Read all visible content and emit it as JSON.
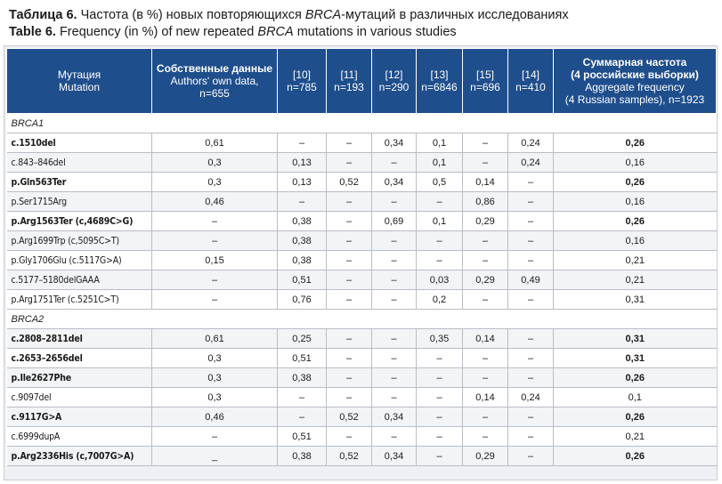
{
  "caption": {
    "ru_label": "Таблица 6.",
    "ru_text_pre": "Частота (в %) новых повторяющихся ",
    "ru_text_italic": "BRCA",
    "ru_text_post": "-мутаций в различных исследованиях",
    "en_label": "Table 6.",
    "en_text_pre": "Frequency (in %) of new repeated ",
    "en_text_italic": "BRCA",
    "en_text_post": " mutations in various studies"
  },
  "colors": {
    "header_bg": "#1f4e8c",
    "header_text": "#ffffff",
    "row_alt_bg": "#f3f4f6",
    "grid_line": "#b8bec5"
  },
  "header": {
    "mutation": {
      "ru": "Мутация",
      "en": "Mutation"
    },
    "own": {
      "ru": "Собственные данные",
      "en": "Authors' own data,",
      "n": "n=655"
    },
    "studies": [
      {
        "ref": "[10]",
        "n": "n=785"
      },
      {
        "ref": "[11]",
        "n": "n=193"
      },
      {
        "ref": "[12]",
        "n": "n=290"
      },
      {
        "ref": "[13]",
        "n": "n=6846"
      },
      {
        "ref": "[15]",
        "n": "n=696"
      },
      {
        "ref": "[14]",
        "n": "n=410"
      }
    ],
    "aggregate": {
      "ru1": "Суммарная частота",
      "ru2": "(4 российские выборки)",
      "en1": "Aggregate frequency",
      "en2": "(4 Russian samples), n=1923"
    }
  },
  "sections": [
    {
      "title": "BRCA1",
      "rows": [
        {
          "mutation": "c.1510del",
          "bold": true,
          "values": [
            "0,61",
            "–",
            "–",
            "0,34",
            "0,1",
            "–",
            "0,24"
          ],
          "aggregate": "0,26"
        },
        {
          "mutation": "c.843–846del",
          "bold": false,
          "values": [
            "0,3",
            "0,13",
            "–",
            "–",
            "0,1",
            "–",
            "0,24"
          ],
          "aggregate": "0,16"
        },
        {
          "mutation": "p.Gln563Ter",
          "bold": true,
          "values": [
            "0,3",
            "0,13",
            "0,52",
            "0,34",
            "0,5",
            "0,14",
            "–"
          ],
          "aggregate": "0,26"
        },
        {
          "mutation": "p.Ser1715Arg",
          "bold": false,
          "values": [
            "0,46",
            "–",
            "–",
            "–",
            "–",
            "0,86",
            "–"
          ],
          "aggregate": "0,16"
        },
        {
          "mutation": "p.Arg1563Ter (c,4689C>G)",
          "bold": true,
          "values": [
            "–",
            "0,38",
            "–",
            "0,69",
            "0,1",
            "0,29",
            "–"
          ],
          "aggregate": "0,26"
        },
        {
          "mutation": "p.Arg1699Trp (c,5095C>T)",
          "bold": false,
          "values": [
            "–",
            "0,38",
            "–",
            "–",
            "–",
            "–",
            "–"
          ],
          "aggregate": "0,16"
        },
        {
          "mutation": "p.Gly1706Glu (c.5117G>A)",
          "bold": false,
          "values": [
            "0,15",
            "0,38",
            "–",
            "–",
            "–",
            "–",
            "–"
          ],
          "aggregate": "0,21"
        },
        {
          "mutation": "c.5177–5180delGAAA",
          "bold": false,
          "values": [
            "–",
            "0,51",
            "–",
            "–",
            "0,03",
            "0,29",
            "0,49"
          ],
          "aggregate": "0,21"
        },
        {
          "mutation": "p.Arg1751Ter (c.5251C>T)",
          "bold": false,
          "values": [
            "–",
            "0,76",
            "–",
            "–",
            "0,2",
            "–",
            "–"
          ],
          "aggregate": "0,31"
        }
      ]
    },
    {
      "title": "BRCA2",
      "rows": [
        {
          "mutation": "c.2808–2811del",
          "bold": true,
          "values": [
            "0,61",
            "0,25",
            "–",
            "–",
            "0,35",
            "0,14",
            "–"
          ],
          "aggregate": "0,31"
        },
        {
          "mutation": "c.2653–2656del",
          "bold": true,
          "values": [
            "0,3",
            "0,51",
            "–",
            "–",
            "–",
            "–",
            "–"
          ],
          "aggregate": "0,31"
        },
        {
          "mutation": "p.Ile2627Phe",
          "bold": true,
          "values": [
            "0,3",
            "0,38",
            "–",
            "–",
            "–",
            "–",
            "–"
          ],
          "aggregate": "0,26"
        },
        {
          "mutation": "c.9097del",
          "bold": false,
          "values": [
            "0,3",
            "–",
            "–",
            "–",
            "–",
            "0,14",
            "0,24"
          ],
          "aggregate": "0,1"
        },
        {
          "mutation": "c.9117G>A",
          "bold": true,
          "values": [
            "0,46",
            "–",
            "0,52",
            "0,34",
            "–",
            "–",
            "–"
          ],
          "aggregate": "0,26"
        },
        {
          "mutation": "c.6999dupA",
          "bold": false,
          "values": [
            "–",
            "0,51",
            "–",
            "–",
            "–",
            "–",
            "–"
          ],
          "aggregate": "0,21"
        },
        {
          "mutation": "p.Arg2336His (c,7007G>A)",
          "bold": true,
          "values": [
            "_",
            "0,38",
            "0,52",
            "0,34",
            "–",
            "0,29",
            "–"
          ],
          "aggregate": "0,26"
        }
      ]
    }
  ]
}
